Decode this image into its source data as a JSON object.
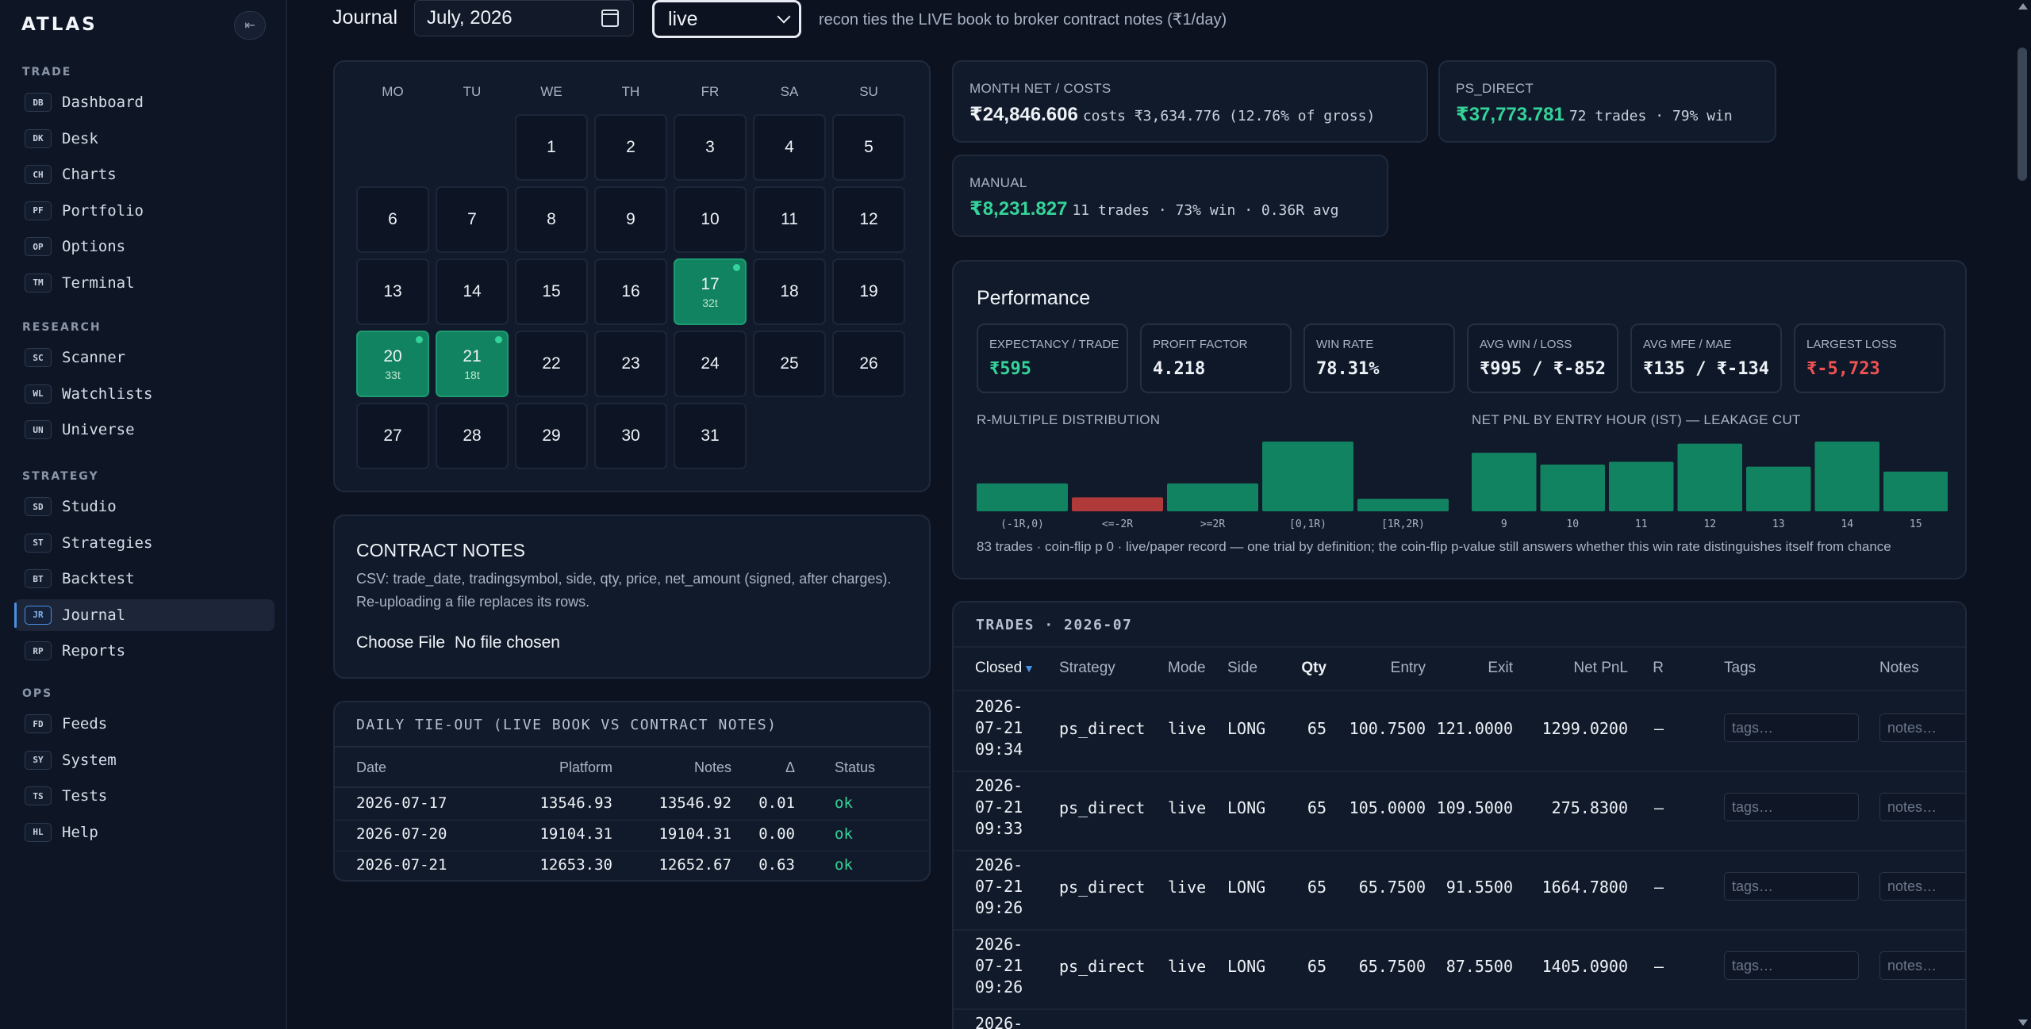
{
  "brand": "ATLAS",
  "icons": {
    "collapse": "⇤",
    "sort_desc": "▼",
    "calendar": "calendar-icon"
  },
  "nav": {
    "sections": [
      {
        "label": "TRADE",
        "items": [
          {
            "code": "DB",
            "label": "Dashboard"
          },
          {
            "code": "DK",
            "label": "Desk"
          },
          {
            "code": "CH",
            "label": "Charts"
          },
          {
            "code": "PF",
            "label": "Portfolio"
          },
          {
            "code": "OP",
            "label": "Options"
          },
          {
            "code": "TM",
            "label": "Terminal"
          }
        ]
      },
      {
        "label": "RESEARCH",
        "items": [
          {
            "code": "SC",
            "label": "Scanner"
          },
          {
            "code": "WL",
            "label": "Watchlists"
          },
          {
            "code": "UN",
            "label": "Universe"
          }
        ]
      },
      {
        "label": "STRATEGY",
        "items": [
          {
            "code": "SD",
            "label": "Studio"
          },
          {
            "code": "ST",
            "label": "Strategies"
          },
          {
            "code": "BT",
            "label": "Backtest"
          },
          {
            "code": "JR",
            "label": "Journal",
            "active": true
          },
          {
            "code": "RP",
            "label": "Reports"
          }
        ]
      },
      {
        "label": "OPS",
        "items": [
          {
            "code": "FD",
            "label": "Feeds"
          },
          {
            "code": "SY",
            "label": "System"
          },
          {
            "code": "TS",
            "label": "Tests"
          },
          {
            "code": "HL",
            "label": "Help"
          }
        ]
      }
    ]
  },
  "header": {
    "title": "Journal",
    "month_value": "July, 2026",
    "mode_value": "live",
    "recon_note": "recon ties the LIVE book to broker contract notes (₹1/day)"
  },
  "calendar": {
    "weekdays": [
      "MO",
      "TU",
      "WE",
      "TH",
      "FR",
      "SA",
      "SU"
    ],
    "first_weekday_index": 2,
    "days_in_month": 31,
    "trade_days": {
      "17": "32t",
      "20": "33t",
      "21": "18t"
    }
  },
  "contract_notes": {
    "title": "CONTRACT NOTES",
    "description": "CSV: trade_date, tradingsymbol, side, qty, price, net_amount (signed, after charges). Re-uploading a file replaces its rows.",
    "file_button": "Choose File",
    "file_status": "No file chosen"
  },
  "tieout": {
    "title": "DAILY TIE-OUT (LIVE BOOK VS CONTRACT NOTES)",
    "headers": [
      "Date",
      "Platform",
      "Notes",
      "Δ",
      "Status"
    ],
    "rows": [
      [
        "2026-07-17",
        "13546.93",
        "13546.92",
        "0.01",
        "ok"
      ],
      [
        "2026-07-20",
        "19104.31",
        "19104.31",
        "0.00",
        "ok"
      ],
      [
        "2026-07-21",
        "12653.30",
        "12652.67",
        "0.63",
        "ok"
      ]
    ]
  },
  "stats": {
    "month": {
      "label": "MONTH NET / COSTS",
      "value": "₹24,846.606",
      "rest": "costs ₹3,634.776 (12.76% of gross)"
    },
    "ps_direct": {
      "label": "PS_DIRECT",
      "value": "₹37,773.781",
      "rest": "72 trades · 79% win"
    },
    "manual": {
      "label": "MANUAL",
      "value": "₹8,231.827",
      "rest": "11 trades · 73% win · 0.36R avg"
    }
  },
  "performance": {
    "title": "Performance",
    "kpis": [
      {
        "label": "EXPECTANCY / TRADE",
        "value": "₹595",
        "tone": "green"
      },
      {
        "label": "PROFIT FACTOR",
        "value": "4.218",
        "tone": "white"
      },
      {
        "label": "WIN RATE",
        "value": "78.31%",
        "tone": "white"
      },
      {
        "label": "AVG WIN / LOSS",
        "value": "₹995 / ₹-852",
        "tone": "white"
      },
      {
        "label": "AVG MFE / MAE",
        "value": "₹135 / ₹-134",
        "tone": "white"
      },
      {
        "label": "LARGEST LOSS",
        "value": "₹-5,723",
        "tone": "red"
      }
    ],
    "footnote": "83 trades · coin-flip p 0 · live/paper record — one trial by definition; the coin-flip p-value still answers whether this win rate distinguishes itself from chance"
  },
  "chart_data": [
    {
      "type": "bar",
      "title": "R-MULTIPLE DISTRIBUTION",
      "categories": [
        "(-1R,0)",
        "<=-2R",
        ">=2R",
        "[0,1R)",
        "[1R,2R)"
      ],
      "values": [
        20,
        10,
        20,
        50,
        9
      ],
      "colors": [
        "#128360",
        "#b03a3a",
        "#128360",
        "#128360",
        "#128360"
      ],
      "ylim": [
        0,
        50
      ]
    },
    {
      "type": "bar",
      "title": "NET PNL BY ENTRY HOUR (IST) — LEAKAGE CUT",
      "categories": [
        "9",
        "10",
        "11",
        "12",
        "13",
        "14",
        "15"
      ],
      "values": [
        4200,
        3350,
        3550,
        4850,
        3200,
        5000,
        2850
      ],
      "colors": [
        "#128360"
      ],
      "ylim": [
        0,
        5000
      ]
    }
  ],
  "trades": {
    "title": "TRADES · 2026-07",
    "headers": [
      "Closed",
      "Strategy",
      "Mode",
      "Side",
      "Qty",
      "Entry",
      "Exit",
      "Net PnL",
      "R",
      "Tags",
      "Notes"
    ],
    "tags_placeholder": "tags…",
    "notes_placeholder": "notes…",
    "rows": [
      {
        "closed": [
          "2026-",
          "07-21",
          "09:34"
        ],
        "strategy": "ps_direct",
        "mode": "live",
        "side": "LONG",
        "qty": "65",
        "entry": "100.7500",
        "exit": "121.0000",
        "pnl": "1299.0200",
        "r": "—"
      },
      {
        "closed": [
          "2026-",
          "07-21",
          "09:33"
        ],
        "strategy": "ps_direct",
        "mode": "live",
        "side": "LONG",
        "qty": "65",
        "entry": "105.0000",
        "exit": "109.5000",
        "pnl": "275.8300",
        "r": "—"
      },
      {
        "closed": [
          "2026-",
          "07-21",
          "09:26"
        ],
        "strategy": "ps_direct",
        "mode": "live",
        "side": "LONG",
        "qty": "65",
        "entry": "65.7500",
        "exit": "91.5500",
        "pnl": "1664.7800",
        "r": "—"
      },
      {
        "closed": [
          "2026-",
          "07-21",
          "09:26"
        ],
        "strategy": "ps_direct",
        "mode": "live",
        "side": "LONG",
        "qty": "65",
        "entry": "65.7500",
        "exit": "87.5500",
        "pnl": "1405.0900",
        "r": "—"
      },
      {
        "closed": [
          "2026-"
        ],
        "strategy": "",
        "mode": "",
        "side": "",
        "qty": "",
        "entry": "",
        "exit": "",
        "pnl": "",
        "r": ""
      }
    ]
  }
}
